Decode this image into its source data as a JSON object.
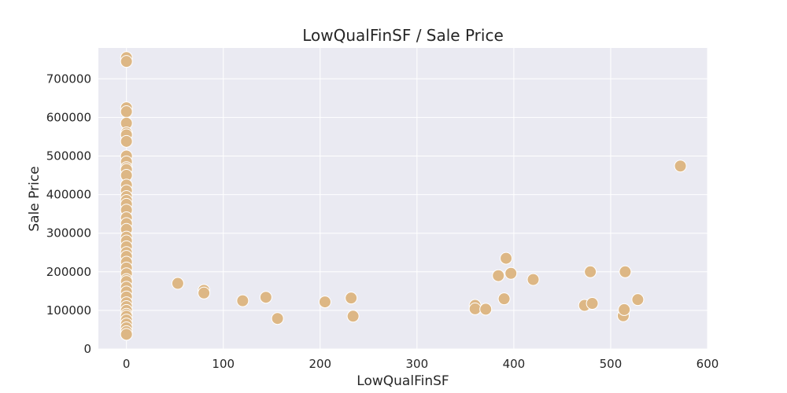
{
  "chart_data": {
    "type": "scatter",
    "title": "LowQualFinSF / Sale Price",
    "xlabel": "LowQualFinSF",
    "ylabel": "Sale Price",
    "xlim": [
      -29,
      600
    ],
    "ylim": [
      0,
      780000
    ],
    "xticks": [
      0,
      100,
      200,
      300,
      400,
      500,
      600
    ],
    "yticks": [
      0,
      100000,
      200000,
      300000,
      400000,
      500000,
      600000,
      700000
    ],
    "grid": true,
    "background": "#eaeaf2",
    "grid_color": "#ffffff",
    "marker_color": "#ddb785",
    "marker_edge": "#ffffff",
    "points": [
      {
        "x": 0,
        "y": 755000
      },
      {
        "x": 0,
        "y": 745000
      },
      {
        "x": 0,
        "y": 625000
      },
      {
        "x": 0,
        "y": 615000
      },
      {
        "x": 0,
        "y": 585000
      },
      {
        "x": 0,
        "y": 560000
      },
      {
        "x": 0,
        "y": 555000
      },
      {
        "x": 0,
        "y": 538000
      },
      {
        "x": 0,
        "y": 500000
      },
      {
        "x": 0,
        "y": 485000
      },
      {
        "x": 0,
        "y": 470000
      },
      {
        "x": 0,
        "y": 465000
      },
      {
        "x": 0,
        "y": 450000
      },
      {
        "x": 0,
        "y": 425000
      },
      {
        "x": 0,
        "y": 410000
      },
      {
        "x": 0,
        "y": 395000
      },
      {
        "x": 0,
        "y": 385000
      },
      {
        "x": 0,
        "y": 375000
      },
      {
        "x": 0,
        "y": 360000
      },
      {
        "x": 0,
        "y": 340000
      },
      {
        "x": 0,
        "y": 325000
      },
      {
        "x": 0,
        "y": 310000
      },
      {
        "x": 0,
        "y": 290000
      },
      {
        "x": 0,
        "y": 280000
      },
      {
        "x": 0,
        "y": 265000
      },
      {
        "x": 0,
        "y": 250000
      },
      {
        "x": 0,
        "y": 240000
      },
      {
        "x": 0,
        "y": 225000
      },
      {
        "x": 0,
        "y": 210000
      },
      {
        "x": 0,
        "y": 195000
      },
      {
        "x": 0,
        "y": 180000
      },
      {
        "x": 0,
        "y": 175000
      },
      {
        "x": 0,
        "y": 160000
      },
      {
        "x": 0,
        "y": 148000
      },
      {
        "x": 0,
        "y": 135000
      },
      {
        "x": 0,
        "y": 120000
      },
      {
        "x": 0,
        "y": 110000
      },
      {
        "x": 0,
        "y": 100000
      },
      {
        "x": 0,
        "y": 90000
      },
      {
        "x": 0,
        "y": 85000
      },
      {
        "x": 0,
        "y": 75000
      },
      {
        "x": 0,
        "y": 65000
      },
      {
        "x": 0,
        "y": 55000
      },
      {
        "x": 0,
        "y": 45000
      },
      {
        "x": 0,
        "y": 38000
      },
      {
        "x": 53,
        "y": 170000
      },
      {
        "x": 80,
        "y": 152000
      },
      {
        "x": 80,
        "y": 145000
      },
      {
        "x": 120,
        "y": 125000
      },
      {
        "x": 144,
        "y": 134000
      },
      {
        "x": 156,
        "y": 79000
      },
      {
        "x": 205,
        "y": 122000
      },
      {
        "x": 232,
        "y": 132000
      },
      {
        "x": 234,
        "y": 85000
      },
      {
        "x": 360,
        "y": 113000
      },
      {
        "x": 360,
        "y": 104000
      },
      {
        "x": 371,
        "y": 103000
      },
      {
        "x": 384,
        "y": 190000
      },
      {
        "x": 390,
        "y": 130000
      },
      {
        "x": 392,
        "y": 235000
      },
      {
        "x": 397,
        "y": 196000
      },
      {
        "x": 420,
        "y": 180000
      },
      {
        "x": 473,
        "y": 113000
      },
      {
        "x": 479,
        "y": 200000
      },
      {
        "x": 481,
        "y": 118000
      },
      {
        "x": 513,
        "y": 86000
      },
      {
        "x": 514,
        "y": 102000
      },
      {
        "x": 515,
        "y": 200000
      },
      {
        "x": 528,
        "y": 128000
      },
      {
        "x": 572,
        "y": 474000
      }
    ]
  }
}
